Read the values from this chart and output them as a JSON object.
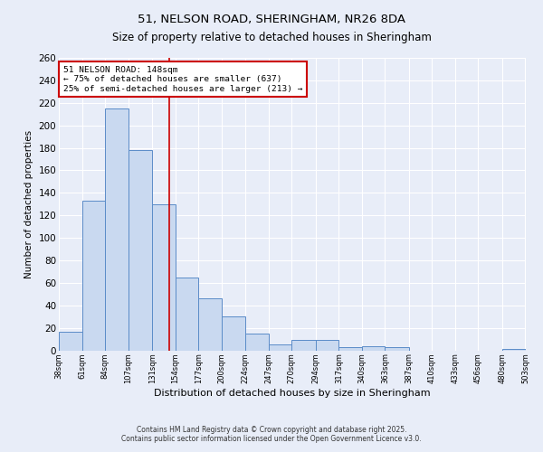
{
  "title_line1": "51, NELSON ROAD, SHERINGHAM, NR26 8DA",
  "title_line2": "Size of property relative to detached houses in Sheringham",
  "xlabel": "Distribution of detached houses by size in Sheringham",
  "ylabel": "Number of detached properties",
  "bar_edges": [
    38,
    61,
    84,
    107,
    131,
    154,
    177,
    200,
    224,
    247,
    270,
    294,
    317,
    340,
    363,
    387,
    410,
    433,
    456,
    480,
    503
  ],
  "bar_heights": [
    17,
    133,
    215,
    178,
    130,
    65,
    46,
    30,
    15,
    5,
    9,
    9,
    3,
    4,
    3,
    0,
    0,
    0,
    0,
    1
  ],
  "bar_color": "#c9d9f0",
  "bar_edge_color": "#5b8cc8",
  "vline_x": 148,
  "vline_color": "#cc0000",
  "annotation_text": "51 NELSON ROAD: 148sqm\n← 75% of detached houses are smaller (637)\n25% of semi-detached houses are larger (213) →",
  "annotation_box_color": "#ffffff",
  "annotation_box_edge_color": "#cc0000",
  "ylim": [
    0,
    260
  ],
  "yticks": [
    0,
    20,
    40,
    60,
    80,
    100,
    120,
    140,
    160,
    180,
    200,
    220,
    240,
    260
  ],
  "bg_color": "#e8edf8",
  "plot_bg_color": "#e8edf8",
  "footer_line1": "Contains HM Land Registry data © Crown copyright and database right 2025.",
  "footer_line2": "Contains public sector information licensed under the Open Government Licence v3.0.",
  "tick_labels": [
    "38sqm",
    "61sqm",
    "84sqm",
    "107sqm",
    "131sqm",
    "154sqm",
    "177sqm",
    "200sqm",
    "224sqm",
    "247sqm",
    "270sqm",
    "294sqm",
    "317sqm",
    "340sqm",
    "363sqm",
    "387sqm",
    "410sqm",
    "433sqm",
    "456sqm",
    "480sqm",
    "503sqm"
  ]
}
